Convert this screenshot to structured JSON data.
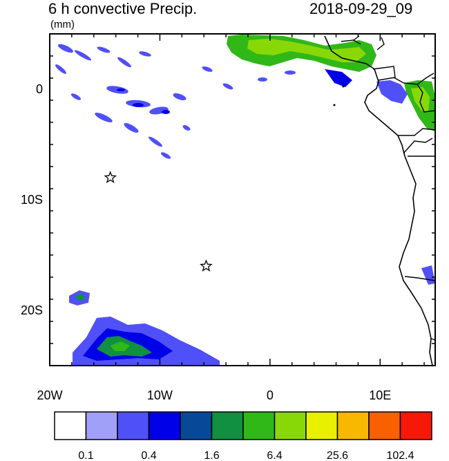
{
  "header": {
    "title": "6 h convective Precip.",
    "units": "(mm)",
    "datetime": "2018-09-29_09"
  },
  "axes": {
    "lon_min": -20,
    "lon_max": 15,
    "lat_min": -25,
    "lat_max": 5,
    "x_ticks": [
      {
        "value": -20,
        "label": "20W"
      },
      {
        "value": -10,
        "label": "10W"
      },
      {
        "value": 0,
        "label": "0"
      },
      {
        "value": 10,
        "label": "10E"
      }
    ],
    "y_ticks": [
      {
        "value": 0,
        "label": "0"
      },
      {
        "value": -10,
        "label": "10S"
      },
      {
        "value": -20,
        "label": "20S"
      }
    ]
  },
  "markers": [
    {
      "name": "star-1",
      "lon": -14.5,
      "lat": -8.0
    },
    {
      "name": "star-2",
      "lon": -5.8,
      "lat": -16.0
    }
  ],
  "colorbar": {
    "colors": [
      "#ffffff",
      "#a0a0f8",
      "#5050f8",
      "#0000e8",
      "#084898",
      "#109040",
      "#30b818",
      "#88d808",
      "#e8f000",
      "#f8b800",
      "#f86000",
      "#f81808"
    ],
    "labels": [
      "0.1",
      "0.4",
      "1.6",
      "6.4",
      "25.6",
      "102.4"
    ]
  }
}
